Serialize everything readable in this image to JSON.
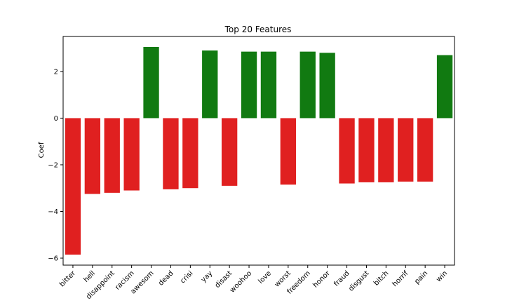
{
  "chart_data": {
    "type": "bar",
    "title": "Top 20 Features",
    "xlabel": "",
    "ylabel": "Coef",
    "ylim": [
      -6.3,
      3.5
    ],
    "yticks": [
      -6,
      -4,
      -2,
      0,
      2
    ],
    "grid": false,
    "categories": [
      "bitter",
      "hell",
      "disappoint",
      "racism",
      "awesom",
      "dead",
      "crisi",
      "yay",
      "disast",
      "woohoo",
      "love",
      "worst",
      "freedom",
      "honor",
      "fraud",
      "disgust",
      "bitch",
      "horrif",
      "pain",
      "win"
    ],
    "values": [
      -5.85,
      -3.25,
      -3.2,
      -3.1,
      3.05,
      -3.05,
      -3.0,
      2.9,
      -2.9,
      2.85,
      2.85,
      -2.85,
      2.85,
      2.8,
      -2.8,
      -2.75,
      -2.75,
      -2.72,
      -2.72,
      2.7
    ],
    "colors": {
      "positive": "#117a11",
      "negative": "#e02020"
    }
  }
}
